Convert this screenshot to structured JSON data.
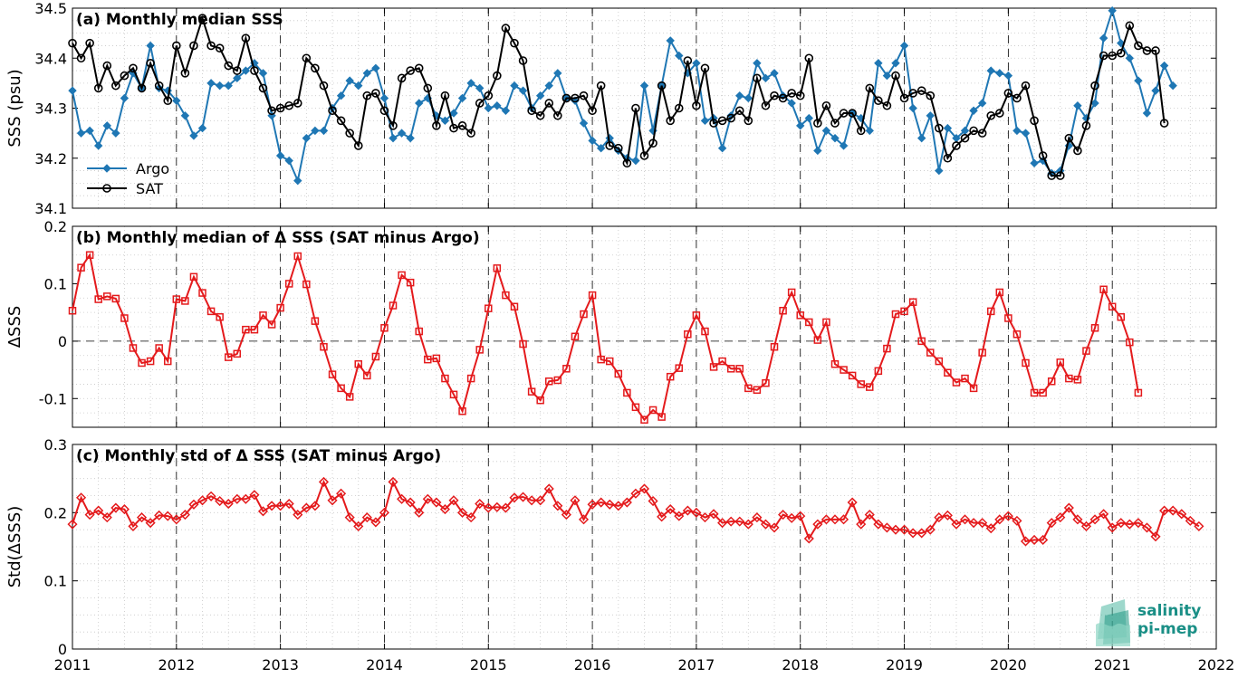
{
  "colors": {
    "argo": "#1f77b4",
    "sat": "#000000",
    "delta": "#e41a1c",
    "grid": "#c8c8c8",
    "logo_text": "#1a8f86",
    "logo_shape": "#4fb8a3"
  },
  "logo": {
    "line1": "salinity",
    "line2": "pi-mep"
  },
  "x_axis": {
    "ticks": [
      "2011",
      "2012",
      "2013",
      "2014",
      "2015",
      "2016",
      "2017",
      "2018",
      "2019",
      "2020",
      "2021",
      "2022"
    ],
    "range": [
      2011,
      2022
    ]
  },
  "chart_data": [
    {
      "type": "line",
      "title": "(a) Monthly median SSS",
      "ylabel": "SSS (psu)",
      "xlabel": "",
      "ylim": [
        34.1,
        34.5
      ],
      "yticks": [
        "34.1",
        "34.2",
        "34.3",
        "34.4",
        "34.5"
      ],
      "x_start": "2011-01",
      "grid": true,
      "legend_position": "bottom-left",
      "series": [
        {
          "name": "Argo",
          "marker": "diamond-filled",
          "values": [
            34.335,
            34.25,
            34.255,
            34.225,
            34.265,
            34.25,
            34.32,
            34.37,
            34.34,
            34.425,
            34.34,
            34.335,
            34.315,
            34.285,
            34.245,
            34.26,
            34.35,
            34.345,
            34.345,
            34.36,
            34.375,
            34.39,
            34.37,
            34.285,
            34.205,
            34.195,
            34.155,
            34.24,
            34.255,
            34.255,
            34.3,
            34.325,
            34.355,
            34.345,
            34.37,
            34.38,
            34.32,
            34.24,
            34.25,
            34.24,
            34.31,
            34.32,
            34.285,
            34.275,
            34.29,
            34.32,
            34.35,
            34.34,
            34.3,
            34.305,
            34.295,
            34.345,
            34.335,
            34.3,
            34.325,
            34.345,
            34.37,
            34.32,
            34.315,
            34.27,
            34.235,
            34.22,
            34.24,
            34.215,
            34.2,
            34.195,
            34.345,
            34.255,
            34.345,
            34.435,
            34.405,
            34.37,
            34.39,
            34.275,
            34.28,
            34.22,
            34.285,
            34.325,
            34.32,
            34.39,
            34.36,
            34.37,
            34.325,
            34.31,
            34.265,
            34.28,
            34.215,
            34.255,
            34.24,
            34.225,
            34.29,
            34.28,
            34.255,
            34.39,
            34.365,
            34.39,
            34.425,
            34.3,
            34.24,
            34.285,
            34.175,
            34.26,
            34.24,
            34.255,
            34.295,
            34.31,
            34.375,
            34.37,
            34.365,
            34.255,
            34.25,
            34.19,
            34.195,
            34.17,
            34.175,
            34.225,
            34.305,
            34.28,
            34.31,
            34.44,
            34.495,
            34.43,
            34.4,
            34.355,
            34.29,
            34.335,
            34.385,
            34.345
          ]
        },
        {
          "name": "SAT",
          "marker": "circle-open",
          "values": [
            34.43,
            34.4,
            34.43,
            34.34,
            34.385,
            34.345,
            34.365,
            34.38,
            34.34,
            34.39,
            34.345,
            34.315,
            34.425,
            34.37,
            34.425,
            34.48,
            34.425,
            34.42,
            34.385,
            34.375,
            34.44,
            34.375,
            34.34,
            34.295,
            34.3,
            34.305,
            34.31,
            34.4,
            34.38,
            34.345,
            34.295,
            34.275,
            34.25,
            34.225,
            34.325,
            34.33,
            34.295,
            34.265,
            34.36,
            34.375,
            34.38,
            34.34,
            34.265,
            34.325,
            34.26,
            34.265,
            34.25,
            34.31,
            34.325,
            34.365,
            34.46,
            34.43,
            34.395,
            34.295,
            34.285,
            34.31,
            34.285,
            34.32,
            34.32,
            34.325,
            34.295,
            34.345,
            34.225,
            34.22,
            34.19,
            34.3,
            34.205,
            34.23,
            34.345,
            34.275,
            34.3,
            34.395,
            34.305,
            34.38,
            34.27,
            34.275,
            34.28,
            34.295,
            34.275,
            34.36,
            34.305,
            34.325,
            34.32,
            34.33,
            34.325,
            34.4,
            34.27,
            34.305,
            34.27,
            34.29,
            34.29,
            34.255,
            34.34,
            34.315,
            34.305,
            34.365,
            34.32,
            34.33,
            34.335,
            34.325,
            34.26,
            34.2,
            34.225,
            34.24,
            34.255,
            34.25,
            34.285,
            34.29,
            34.33,
            34.32,
            34.345,
            34.275,
            34.205,
            34.165,
            34.165,
            34.24,
            34.215,
            34.265,
            34.345,
            34.405,
            34.405,
            34.41,
            34.465,
            34.425,
            34.415,
            34.415,
            34.27
          ]
        }
      ]
    },
    {
      "type": "line",
      "title": "(b) Monthly median of Δ SSS (SAT minus Argo)",
      "ylabel": "ΔSSS",
      "xlabel": "",
      "ylim": [
        -0.15,
        0.2
      ],
      "yticks": [
        "-0.1",
        "0",
        "0.1",
        "0.2"
      ],
      "x_start": "2011-01",
      "grid": true,
      "zero_line": true,
      "series": [
        {
          "marker": "square-open",
          "values": [
            0.053,
            0.128,
            0.15,
            0.073,
            0.078,
            0.074,
            0.04,
            -0.012,
            -0.038,
            -0.035,
            -0.012,
            -0.035,
            0.073,
            0.07,
            0.112,
            0.084,
            0.052,
            0.042,
            -0.028,
            -0.022,
            0.02,
            0.02,
            0.045,
            0.029,
            0.058,
            0.1,
            0.148,
            0.099,
            0.035,
            -0.01,
            -0.058,
            -0.082,
            -0.097,
            -0.04,
            -0.06,
            -0.027,
            0.023,
            0.062,
            0.115,
            0.102,
            0.017,
            -0.032,
            -0.03,
            -0.065,
            -0.093,
            -0.122,
            -0.065,
            -0.015,
            0.057,
            0.127,
            0.08,
            0.06,
            -0.005,
            -0.088,
            -0.103,
            -0.07,
            -0.068,
            -0.048,
            0.008,
            0.047,
            0.08,
            -0.032,
            -0.035,
            -0.057,
            -0.09,
            -0.115,
            -0.137,
            -0.12,
            -0.132,
            -0.062,
            -0.047,
            0.012,
            0.045,
            0.017,
            -0.045,
            -0.035,
            -0.048,
            -0.048,
            -0.082,
            -0.085,
            -0.073,
            -0.01,
            0.053,
            0.085,
            0.045,
            0.033,
            0.002,
            0.033,
            -0.04,
            -0.05,
            -0.06,
            -0.075,
            -0.08,
            -0.052,
            -0.013,
            0.047,
            0.052,
            0.068,
            0.0,
            -0.02,
            -0.035,
            -0.055,
            -0.072,
            -0.065,
            -0.082,
            -0.02,
            0.052,
            0.085,
            0.04,
            0.012,
            -0.038,
            -0.09,
            -0.09,
            -0.07,
            -0.037,
            -0.065,
            -0.067,
            -0.017,
            0.023,
            0.09,
            0.06,
            0.042,
            -0.002,
            -0.09
          ]
        }
      ]
    },
    {
      "type": "line",
      "title": "(c) Monthly std of Δ SSS (SAT minus Argo)",
      "ylabel": "Std(ΔSSS)",
      "xlabel": "",
      "ylim": [
        0,
        0.3
      ],
      "yticks": [
        "0",
        "0.1",
        "0.2",
        "0.3"
      ],
      "x_start": "2011-01",
      "grid": true,
      "series": [
        {
          "marker": "diamond-open",
          "values": [
            0.183,
            0.222,
            0.197,
            0.203,
            0.193,
            0.207,
            0.205,
            0.18,
            0.193,
            0.185,
            0.196,
            0.195,
            0.19,
            0.197,
            0.212,
            0.218,
            0.224,
            0.217,
            0.213,
            0.22,
            0.22,
            0.226,
            0.202,
            0.21,
            0.21,
            0.213,
            0.197,
            0.207,
            0.21,
            0.245,
            0.218,
            0.228,
            0.193,
            0.18,
            0.193,
            0.186,
            0.2,
            0.245,
            0.22,
            0.215,
            0.2,
            0.22,
            0.215,
            0.205,
            0.218,
            0.2,
            0.193,
            0.213,
            0.207,
            0.208,
            0.207,
            0.222,
            0.223,
            0.218,
            0.218,
            0.235,
            0.21,
            0.197,
            0.218,
            0.19,
            0.212,
            0.215,
            0.212,
            0.21,
            0.215,
            0.228,
            0.235,
            0.217,
            0.194,
            0.205,
            0.195,
            0.203,
            0.2,
            0.193,
            0.198,
            0.185,
            0.187,
            0.187,
            0.183,
            0.193,
            0.183,
            0.178,
            0.197,
            0.192,
            0.195,
            0.162,
            0.183,
            0.19,
            0.19,
            0.19,
            0.215,
            0.183,
            0.197,
            0.183,
            0.178,
            0.175,
            0.175,
            0.17,
            0.17,
            0.175,
            0.193,
            0.196,
            0.183,
            0.19,
            0.185,
            0.185,
            0.177,
            0.19,
            0.195,
            0.188,
            0.158,
            0.16,
            0.16,
            0.185,
            0.193,
            0.207,
            0.19,
            0.18,
            0.19,
            0.198,
            0.178,
            0.185,
            0.183,
            0.185,
            0.178,
            0.165,
            0.203,
            0.203,
            0.198,
            0.188,
            0.18
          ]
        }
      ]
    }
  ]
}
